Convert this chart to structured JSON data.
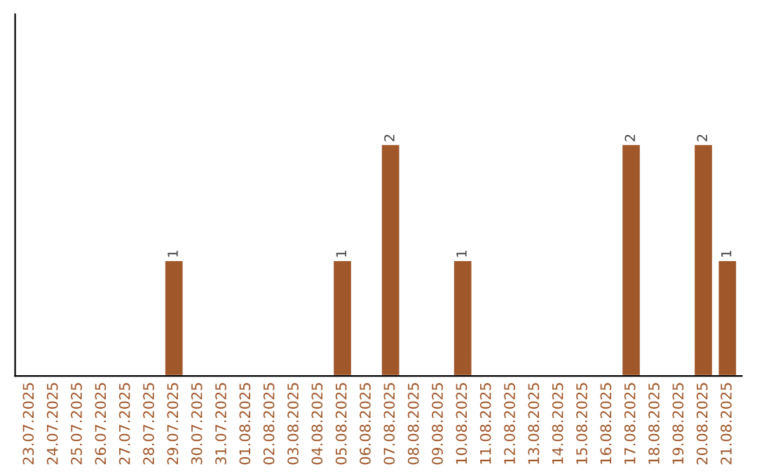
{
  "chart_data": {
    "type": "bar",
    "categories": [
      "23.07.2025",
      "24.07.2025",
      "25.07.2025",
      "26.07.2025",
      "27.07.2025",
      "28.07.2025",
      "29.07.2025",
      "30.07.2025",
      "31.07.2025",
      "01.08.2025",
      "02.08.2025",
      "03.08.2025",
      "04.08.2025",
      "05.08.2025",
      "06.08.2025",
      "07.08.2025",
      "08.08.2025",
      "09.08.2025",
      "10.08.2025",
      "11.08.2025",
      "12.08.2025",
      "13.08.2025",
      "14.08.2025",
      "15.08.2025",
      "16.08.2025",
      "17.08.2025",
      "18.08.2025",
      "19.08.2025",
      "20.08.2025",
      "21.08.2025"
    ],
    "values": [
      null,
      null,
      null,
      null,
      null,
      null,
      1,
      null,
      null,
      null,
      null,
      null,
      null,
      1,
      null,
      2,
      null,
      null,
      1,
      null,
      null,
      null,
      null,
      null,
      null,
      2,
      null,
      null,
      2,
      1
    ],
    "color": "#a0572a",
    "ylim": [
      0,
      3.12
    ],
    "tick_labels": "x",
    "data_labels": true,
    "grid": false,
    "legend": false
  }
}
